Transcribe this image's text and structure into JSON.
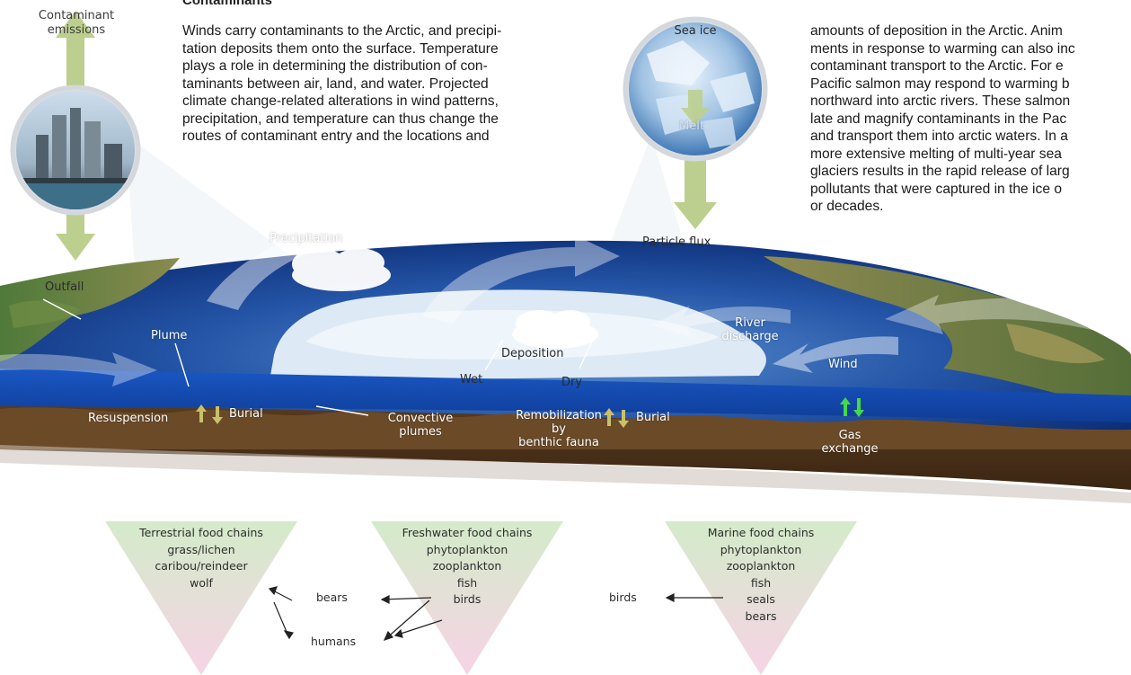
{
  "heading": "Contaminants",
  "paragraph_left": [
    "Winds carry contaminants to the Arctic, and precipi-",
    "tation deposits them onto the surface. Temperature",
    "plays a role in determining the distribution of con-",
    "taminants between air, land, and water. Projected",
    "climate change-related alterations in wind patterns,",
    "precipitation, and temperature can thus change the",
    "routes of contaminant entry and the locations and"
  ],
  "paragraph_right": [
    "amounts of deposition in the Arctic. Anim",
    "ments in response to warming can also inc",
    "contaminant transport to the Arctic.  For e",
    "Pacific salmon may respond to warming b",
    "northward into arctic rivers. These salmon",
    "late and magnify contaminants in the Pac",
    "and transport them into arctic waters. In a",
    "more extensive melting of multi-year sea",
    "glaciers results in the rapid release of larg",
    "pollutants that were captured in the ice o",
    "or decades."
  ],
  "labels": {
    "contaminant_emissions": [
      "Contaminant",
      "emissions"
    ],
    "outfall": "Outfall",
    "sea_ice": "Sea ice",
    "melt": "Melt",
    "particle_flux": "Particle flux",
    "precipitation": "Precipitation",
    "plume": "Plume",
    "deposition": "Deposition",
    "wet": "Wet",
    "dry": "Dry",
    "river_discharge": [
      "River",
      "discharge"
    ],
    "wind": "Wind",
    "resuspension": "Resuspension",
    "burial_left": "Burial",
    "convective_plumes": [
      "Convective",
      "plumes"
    ],
    "remobilization": [
      "Remobilization by",
      "benthic fauna"
    ],
    "burial_right": "Burial",
    "gas_exchange": [
      "Gas",
      "exchange"
    ]
  },
  "food_chains": [
    {
      "title": "Terrestrial food chains",
      "items": [
        "grass/lichen",
        "caribou/reindeer",
        "wolf"
      ]
    },
    {
      "title": "Freshwater food chains",
      "items": [
        "phytoplankton",
        "zooplankton",
        "fish",
        "birds"
      ]
    },
    {
      "title": "Marine food chains",
      "items": [
        "phytoplankton",
        "zooplankton",
        "fish",
        "seals",
        "bears"
      ]
    }
  ],
  "food_chain_links": {
    "bears": "bears",
    "humans": "humans",
    "birds": "birds"
  },
  "colors": {
    "arrow_green": "#b9cc8a",
    "sea_deep": "#0f3a8c",
    "sea_light": "#5d8fcf",
    "seabed": "#5a3d20",
    "triangle_top": "#d3ebc9",
    "triangle_bottom": "#f7d3e6"
  }
}
